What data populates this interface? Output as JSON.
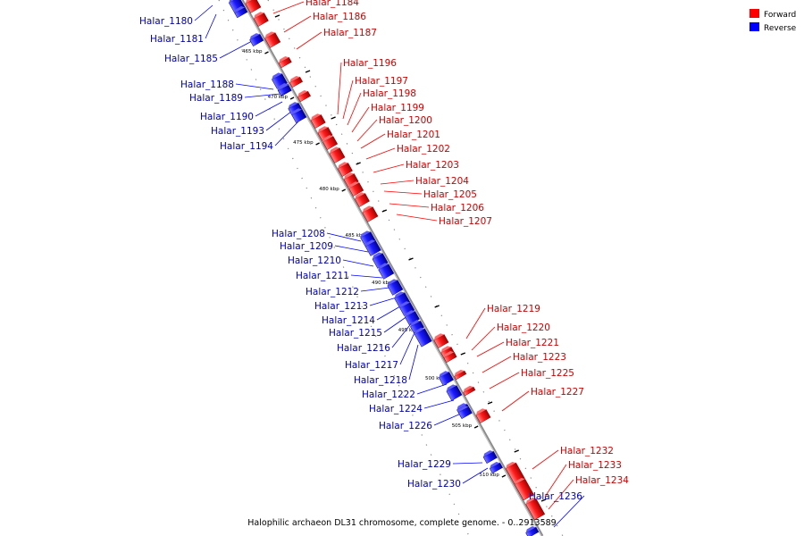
{
  "title": "Halophilic archaeon DL31 chromosome, complete genome. - 0..2913589",
  "legend": [
    {
      "label": "Forward",
      "color": "#ff0000"
    },
    {
      "label": "Reverse",
      "color": "#0000ff"
    }
  ],
  "colors": {
    "forward_fill": "#ff0000",
    "forward_label": "#cc0000",
    "reverse_fill": "#0000ff",
    "reverse_label": "#0000b3"
  },
  "ticks": [
    "465 kbp",
    "470 kbp",
    "475 kbp",
    "480 kbp",
    "485 kbp",
    "490 kbp",
    "495 kbp",
    "500 kbp",
    "505 kbp",
    "510 kbp"
  ],
  "genes": [
    {
      "id": "Halar_1180",
      "strand": "reverse"
    },
    {
      "id": "Halar_1181",
      "strand": "reverse"
    },
    {
      "id": "Halar_1184",
      "strand": "forward"
    },
    {
      "id": "Halar_1185",
      "strand": "reverse"
    },
    {
      "id": "Halar_1186",
      "strand": "forward"
    },
    {
      "id": "Halar_1187",
      "strand": "forward"
    },
    {
      "id": "Halar_1188",
      "strand": "reverse"
    },
    {
      "id": "Halar_1189",
      "strand": "reverse"
    },
    {
      "id": "Halar_1190",
      "strand": "reverse"
    },
    {
      "id": "Halar_1193",
      "strand": "reverse"
    },
    {
      "id": "Halar_1194",
      "strand": "reverse"
    },
    {
      "id": "Halar_1196",
      "strand": "forward"
    },
    {
      "id": "Halar_1197",
      "strand": "forward"
    },
    {
      "id": "Halar_1198",
      "strand": "forward"
    },
    {
      "id": "Halar_1199",
      "strand": "forward"
    },
    {
      "id": "Halar_1200",
      "strand": "forward"
    },
    {
      "id": "Halar_1201",
      "strand": "forward"
    },
    {
      "id": "Halar_1202",
      "strand": "forward"
    },
    {
      "id": "Halar_1203",
      "strand": "forward"
    },
    {
      "id": "Halar_1204",
      "strand": "forward"
    },
    {
      "id": "Halar_1205",
      "strand": "forward"
    },
    {
      "id": "Halar_1206",
      "strand": "forward"
    },
    {
      "id": "Halar_1207",
      "strand": "forward"
    },
    {
      "id": "Halar_1208",
      "strand": "reverse"
    },
    {
      "id": "Halar_1209",
      "strand": "reverse"
    },
    {
      "id": "Halar_1210",
      "strand": "reverse"
    },
    {
      "id": "Halar_1211",
      "strand": "reverse"
    },
    {
      "id": "Halar_1212",
      "strand": "reverse"
    },
    {
      "id": "Halar_1213",
      "strand": "reverse"
    },
    {
      "id": "Halar_1214",
      "strand": "reverse"
    },
    {
      "id": "Halar_1215",
      "strand": "reverse"
    },
    {
      "id": "Halar_1216",
      "strand": "reverse"
    },
    {
      "id": "Halar_1217",
      "strand": "reverse"
    },
    {
      "id": "Halar_1218",
      "strand": "reverse"
    },
    {
      "id": "Halar_1219",
      "strand": "forward"
    },
    {
      "id": "Halar_1220",
      "strand": "forward"
    },
    {
      "id": "Halar_1221",
      "strand": "forward"
    },
    {
      "id": "Halar_1222",
      "strand": "reverse"
    },
    {
      "id": "Halar_1223",
      "strand": "forward"
    },
    {
      "id": "Halar_1224",
      "strand": "reverse"
    },
    {
      "id": "Halar_1225",
      "strand": "forward"
    },
    {
      "id": "Halar_1226",
      "strand": "reverse"
    },
    {
      "id": "Halar_1227",
      "strand": "forward"
    },
    {
      "id": "Halar_1229",
      "strand": "reverse"
    },
    {
      "id": "Halar_1230",
      "strand": "reverse"
    },
    {
      "id": "Halar_1232",
      "strand": "forward"
    },
    {
      "id": "Halar_1233",
      "strand": "forward"
    },
    {
      "id": "Halar_1234",
      "strand": "forward"
    },
    {
      "id": "Halar_1236",
      "strand": "reverse"
    }
  ]
}
